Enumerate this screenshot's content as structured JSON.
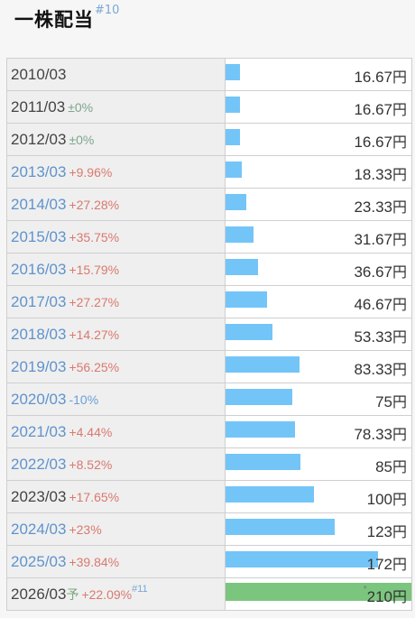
{
  "header": {
    "title": "一株配当",
    "ref": "#10"
  },
  "unit": "円",
  "chart_data": {
    "type": "bar",
    "orientation": "horizontal",
    "title": "一株配当",
    "xlim": [
      0,
      210
    ],
    "rows": [
      {
        "period": "2010/03",
        "change": "",
        "change_dir": "none",
        "value": 16.67,
        "value_label": "16.67",
        "period_color": "dark"
      },
      {
        "period": "2011/03",
        "change": "±0%",
        "change_dir": "flat",
        "value": 16.67,
        "value_label": "16.67",
        "period_color": "dark"
      },
      {
        "period": "2012/03",
        "change": "±0%",
        "change_dir": "flat",
        "value": 16.67,
        "value_label": "16.67",
        "period_color": "dark"
      },
      {
        "period": "2013/03",
        "change": "+9.96%",
        "change_dir": "up",
        "value": 18.33,
        "value_label": "18.33",
        "period_color": "blue"
      },
      {
        "period": "2014/03",
        "change": "+27.28%",
        "change_dir": "up",
        "value": 23.33,
        "value_label": "23.33",
        "period_color": "blue"
      },
      {
        "period": "2015/03",
        "change": "+35.75%",
        "change_dir": "up",
        "value": 31.67,
        "value_label": "31.67",
        "period_color": "blue"
      },
      {
        "period": "2016/03",
        "change": "+15.79%",
        "change_dir": "up",
        "value": 36.67,
        "value_label": "36.67",
        "period_color": "blue"
      },
      {
        "period": "2017/03",
        "change": "+27.27%",
        "change_dir": "up",
        "value": 46.67,
        "value_label": "46.67",
        "period_color": "blue"
      },
      {
        "period": "2018/03",
        "change": "+14.27%",
        "change_dir": "up",
        "value": 53.33,
        "value_label": "53.33",
        "period_color": "blue"
      },
      {
        "period": "2019/03",
        "change": "+56.25%",
        "change_dir": "up",
        "value": 83.33,
        "value_label": "83.33",
        "period_color": "blue"
      },
      {
        "period": "2020/03",
        "change": "-10%",
        "change_dir": "down",
        "value": 75,
        "value_label": "75",
        "period_color": "blue"
      },
      {
        "period": "2021/03",
        "change": "+4.44%",
        "change_dir": "up",
        "value": 78.33,
        "value_label": "78.33",
        "period_color": "blue"
      },
      {
        "period": "2022/03",
        "change": "+8.52%",
        "change_dir": "up",
        "value": 85,
        "value_label": "85",
        "period_color": "blue"
      },
      {
        "period": "2023/03",
        "change": "+17.65%",
        "change_dir": "up",
        "value": 100,
        "value_label": "100",
        "period_color": "dark"
      },
      {
        "period": "2024/03",
        "change": "+23%",
        "change_dir": "up",
        "value": 123,
        "value_label": "123",
        "period_color": "blue"
      },
      {
        "period": "2025/03",
        "change": "+39.84%",
        "change_dir": "up",
        "value": 172,
        "value_label": "172",
        "period_color": "blue"
      },
      {
        "period": "2026/03",
        "forecast_mark": "予",
        "change": "+22.09%",
        "change_dir": "up",
        "value": 210,
        "value_label": "210",
        "period_color": "dark",
        "forecast": true,
        "ref": "#11",
        "value_prefix": "*"
      }
    ],
    "colors": {
      "bar": "#73c5f8",
      "forecast_bar": "#7cc57e",
      "up": "#d9796f",
      "down": "#6a9fd6",
      "flat": "#7fa58c"
    }
  }
}
